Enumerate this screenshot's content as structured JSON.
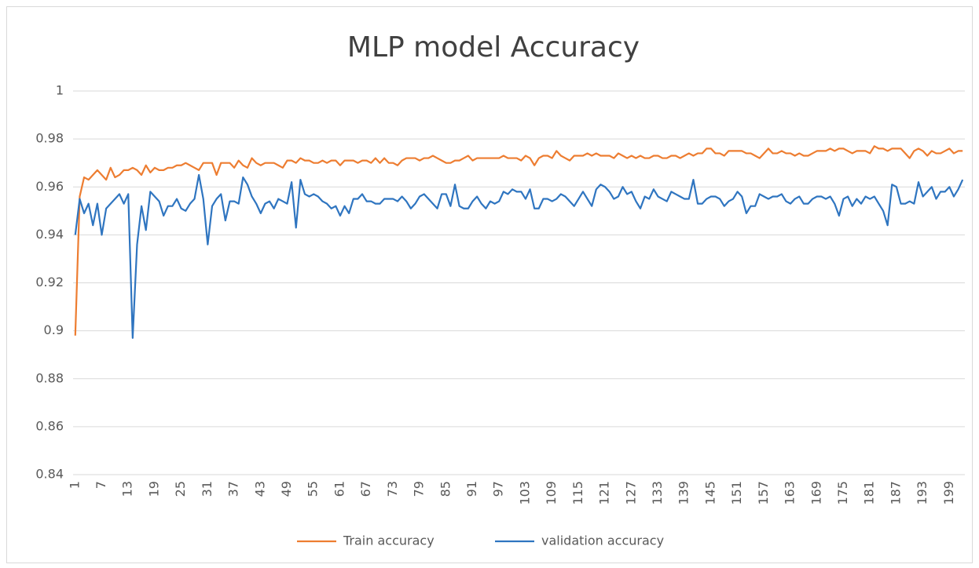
{
  "chart_data": {
    "type": "line",
    "title": "MLP model Accuracy",
    "categories": [
      1,
      null,
      null,
      null,
      null,
      null,
      7,
      null,
      null,
      null,
      null,
      null,
      13,
      null,
      null,
      null,
      null,
      null,
      19,
      null,
      null,
      null,
      null,
      null,
      25,
      null,
      null,
      null,
      null,
      null,
      31,
      null,
      null,
      null,
      null,
      null,
      37,
      null,
      null,
      null,
      null,
      null,
      43,
      null,
      null,
      null,
      null,
      null,
      49,
      null,
      null,
      null,
      null,
      null,
      55,
      null,
      null,
      null,
      null,
      null,
      61,
      null,
      null,
      null,
      null,
      null,
      67,
      null,
      null,
      null,
      null,
      null,
      73,
      null,
      null,
      null,
      null,
      null,
      79,
      null,
      null,
      null,
      null,
      null,
      85,
      null,
      null,
      null,
      null,
      null,
      91,
      null,
      null,
      null,
      null,
      null,
      97,
      null,
      null,
      null,
      null,
      null,
      103,
      null,
      null,
      null,
      null,
      null,
      109,
      null,
      null,
      null,
      null,
      null,
      115,
      null,
      null,
      null,
      null,
      null,
      121,
      null,
      null,
      null,
      null,
      null,
      127,
      null,
      null,
      null,
      null,
      null,
      133,
      null,
      null,
      null,
      null,
      null,
      139,
      null,
      null,
      null,
      null,
      null,
      145,
      null,
      null,
      null,
      null,
      null,
      151,
      null,
      null,
      null,
      null,
      null,
      157,
      null,
      null,
      null,
      null,
      null,
      163,
      null,
      null,
      null,
      null,
      null,
      169,
      null,
      null,
      null,
      null,
      null,
      175,
      null,
      null,
      null,
      null,
      null,
      181,
      null,
      null,
      null,
      null,
      null,
      187,
      null,
      null,
      null,
      null,
      null,
      193,
      null,
      null,
      null,
      null,
      null,
      199,
      null,
      null,
      null
    ],
    "series": [
      {
        "name": "Train accuracy",
        "color": "#ED7D31",
        "values": [
          0.898,
          0.956,
          0.964,
          0.963,
          0.965,
          0.967,
          0.965,
          0.963,
          0.968,
          0.964,
          0.965,
          0.967,
          0.967,
          0.968,
          0.967,
          0.965,
          0.969,
          0.966,
          0.968,
          0.967,
          0.967,
          0.968,
          0.968,
          0.969,
          0.969,
          0.97,
          0.969,
          0.968,
          0.967,
          0.97,
          0.97,
          0.97,
          0.965,
          0.97,
          0.97,
          0.97,
          0.968,
          0.971,
          0.969,
          0.968,
          0.972,
          0.97,
          0.969,
          0.97,
          0.97,
          0.97,
          0.969,
          0.968,
          0.971,
          0.971,
          0.97,
          0.972,
          0.971,
          0.971,
          0.97,
          0.97,
          0.971,
          0.97,
          0.971,
          0.971,
          0.969,
          0.971,
          0.971,
          0.971,
          0.97,
          0.971,
          0.971,
          0.97,
          0.972,
          0.97,
          0.972,
          0.97,
          0.97,
          0.969,
          0.971,
          0.972,
          0.972,
          0.972,
          0.971,
          0.972,
          0.972,
          0.973,
          0.972,
          0.971,
          0.97,
          0.97,
          0.971,
          0.971,
          0.972,
          0.973,
          0.971,
          0.972,
          0.972,
          0.972,
          0.972,
          0.972,
          0.972,
          0.973,
          0.972,
          0.972,
          0.972,
          0.971,
          0.973,
          0.972,
          0.969,
          0.972,
          0.973,
          0.973,
          0.972,
          0.975,
          0.973,
          0.972,
          0.971,
          0.973,
          0.973,
          0.973,
          0.974,
          0.973,
          0.974,
          0.973,
          0.973,
          0.973,
          0.972,
          0.974,
          0.973,
          0.972,
          0.973,
          0.972,
          0.973,
          0.972,
          0.972,
          0.973,
          0.973,
          0.972,
          0.972,
          0.973,
          0.973,
          0.972,
          0.973,
          0.974,
          0.973,
          0.974,
          0.974,
          0.976,
          0.976,
          0.974,
          0.974,
          0.973,
          0.975,
          0.975,
          0.975,
          0.975,
          0.974,
          0.974,
          0.973,
          0.972,
          0.974,
          0.976,
          0.974,
          0.974,
          0.975,
          0.974,
          0.974,
          0.973,
          0.974,
          0.973,
          0.973,
          0.974,
          0.975,
          0.975,
          0.975,
          0.976,
          0.975,
          0.976,
          0.976,
          0.975,
          0.974,
          0.975,
          0.975,
          0.975,
          0.974,
          0.977,
          0.976,
          0.976,
          0.975,
          0.976,
          0.976,
          0.976,
          0.974,
          0.972,
          0.975,
          0.976,
          0.975,
          0.973,
          0.975,
          0.974,
          0.974,
          0.975,
          0.976,
          0.974,
          0.975,
          0.975
        ]
      },
      {
        "name": "validation accuracy",
        "color": "#2F75C0",
        "values": [
          0.94,
          0.955,
          0.949,
          0.953,
          0.944,
          0.953,
          0.94,
          0.951,
          0.953,
          0.955,
          0.957,
          0.953,
          0.957,
          0.897,
          0.936,
          0.952,
          0.942,
          0.958,
          0.956,
          0.954,
          0.948,
          0.952,
          0.952,
          0.955,
          0.951,
          0.95,
          0.953,
          0.955,
          0.965,
          0.955,
          0.936,
          0.952,
          0.955,
          0.957,
          0.946,
          0.954,
          0.954,
          0.953,
          0.964,
          0.961,
          0.956,
          0.953,
          0.949,
          0.953,
          0.954,
          0.951,
          0.955,
          0.954,
          0.953,
          0.962,
          0.943,
          0.963,
          0.957,
          0.956,
          0.957,
          0.956,
          0.954,
          0.953,
          0.951,
          0.952,
          0.948,
          0.952,
          0.949,
          0.955,
          0.955,
          0.957,
          0.954,
          0.954,
          0.953,
          0.953,
          0.955,
          0.955,
          0.955,
          0.954,
          0.956,
          0.954,
          0.951,
          0.953,
          0.956,
          0.957,
          0.955,
          0.953,
          0.951,
          0.957,
          0.957,
          0.952,
          0.961,
          0.952,
          0.951,
          0.951,
          0.954,
          0.956,
          0.953,
          0.951,
          0.954,
          0.953,
          0.954,
          0.958,
          0.957,
          0.959,
          0.958,
          0.958,
          0.955,
          0.959,
          0.951,
          0.951,
          0.955,
          0.955,
          0.954,
          0.955,
          0.957,
          0.956,
          0.954,
          0.952,
          0.955,
          0.958,
          0.955,
          0.952,
          0.959,
          0.961,
          0.96,
          0.958,
          0.955,
          0.956,
          0.96,
          0.957,
          0.958,
          0.954,
          0.951,
          0.956,
          0.955,
          0.959,
          0.956,
          0.955,
          0.954,
          0.958,
          0.957,
          0.956,
          0.955,
          0.955,
          0.963,
          0.953,
          0.953,
          0.955,
          0.956,
          0.956,
          0.955,
          0.952,
          0.954,
          0.955,
          0.958,
          0.956,
          0.949,
          0.952,
          0.952,
          0.957,
          0.956,
          0.955,
          0.956,
          0.956,
          0.957,
          0.954,
          0.953,
          0.955,
          0.956,
          0.953,
          0.953,
          0.955,
          0.956,
          0.956,
          0.955,
          0.956,
          0.953,
          0.948,
          0.955,
          0.956,
          0.952,
          0.955,
          0.953,
          0.956,
          0.955,
          0.956,
          0.953,
          0.95,
          0.944,
          0.961,
          0.96,
          0.953,
          0.953,
          0.954,
          0.953,
          0.962,
          0.956,
          0.958,
          0.96,
          0.955,
          0.958,
          0.958,
          0.96,
          0.956,
          0.959,
          0.963
        ]
      }
    ],
    "ylim": [
      0.84,
      1
    ],
    "yticks": [
      0.84,
      0.86,
      0.88,
      0.9,
      0.92,
      0.94,
      0.96,
      0.98,
      1
    ],
    "grid": true,
    "legend": "bottom"
  }
}
